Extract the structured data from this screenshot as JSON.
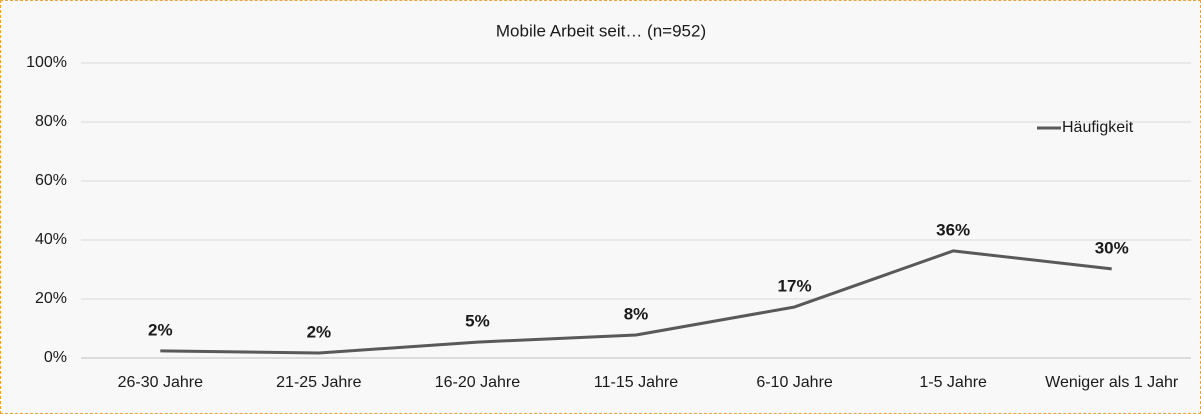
{
  "chart_data": {
    "type": "line",
    "title": "Mobile Arbeit seit… (n=952)",
    "categories": [
      "26-30 Jahre",
      "21-25 Jahre",
      "16-20 Jahre",
      "11-15 Jahre",
      "6-10 Jahre",
      "1-5 Jahre",
      "Weniger als 1 Jahr"
    ],
    "series": [
      {
        "name": "Häufigkeit",
        "color": "#595959",
        "values": [
          2.4,
          1.7,
          5.4,
          7.8,
          17.3,
          36.3,
          30.2
        ],
        "value_labels": [
          "2%",
          "2%",
          "5%",
          "8%",
          "17%",
          "36%",
          "30%"
        ]
      }
    ],
    "ylim": [
      0,
      100
    ],
    "yticks": [
      {
        "value": 0,
        "label": "0%"
      },
      {
        "value": 20,
        "label": "20%"
      },
      {
        "value": 40,
        "label": "40%"
      },
      {
        "value": 60,
        "label": "60%"
      },
      {
        "value": 80,
        "label": "80%"
      },
      {
        "value": 100,
        "label": "100%"
      }
    ],
    "grid": true,
    "legend": "upper right"
  }
}
